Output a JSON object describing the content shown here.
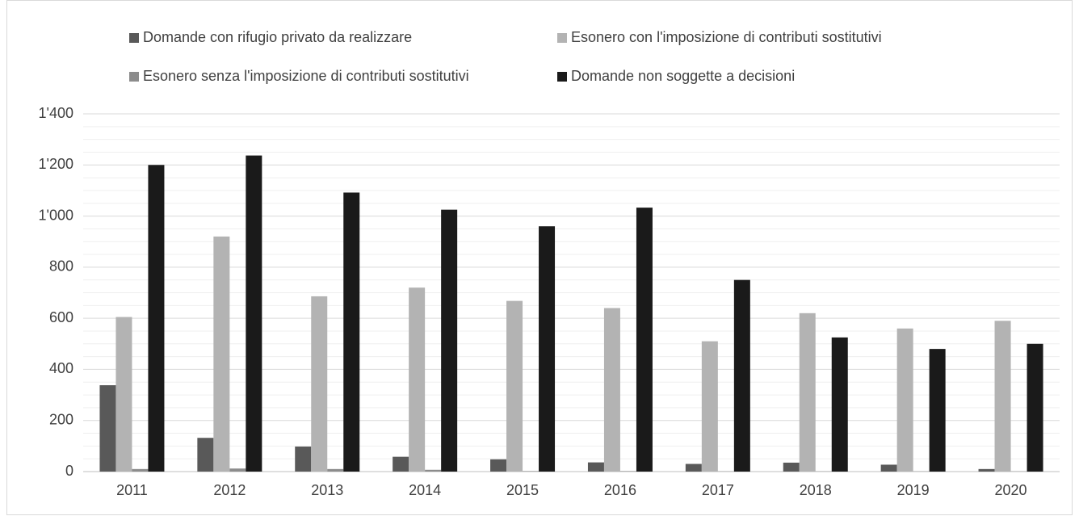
{
  "chart_data": {
    "type": "bar",
    "categories": [
      "2011",
      "2012",
      "2013",
      "2014",
      "2015",
      "2016",
      "2017",
      "2018",
      "2019",
      "2020"
    ],
    "series": [
      {
        "name": "Domande con rifugio privato da realizzare",
        "color": "#595959",
        "values": [
          338,
          132,
          98,
          58,
          48,
          36,
          30,
          35,
          27,
          10
        ]
      },
      {
        "name": "Esonero con l'imposizione di contributi sostitutivi",
        "color": "#b3b3b3",
        "values": [
          605,
          920,
          686,
          720,
          668,
          640,
          510,
          620,
          560,
          590
        ]
      },
      {
        "name": "Esonero senza l'imposizione di contributi sostitutivi",
        "color": "#8c8c8c",
        "values": [
          10,
          12,
          10,
          7,
          2,
          2,
          1,
          1,
          1,
          1
        ]
      },
      {
        "name": "Domande non soggette a decisioni",
        "color": "#1a1a1a",
        "values": [
          1200,
          1237,
          1092,
          1025,
          960,
          1033,
          750,
          525,
          480,
          500
        ]
      }
    ],
    "ylim": [
      0,
      1400
    ],
    "yticks": [
      0,
      200,
      400,
      600,
      800,
      {
        "value": 1000,
        "label": "1'000"
      },
      {
        "value": 1200,
        "label": "1'200"
      },
      {
        "value": 1400,
        "label": "1'400"
      }
    ],
    "yminorticks": [
      50,
      100,
      150,
      250,
      300,
      350,
      450,
      500,
      550,
      650,
      700,
      750,
      850,
      900,
      950,
      1050,
      1100,
      1150,
      1250,
      1300,
      1350
    ],
    "grid": true,
    "legend": "top"
  }
}
